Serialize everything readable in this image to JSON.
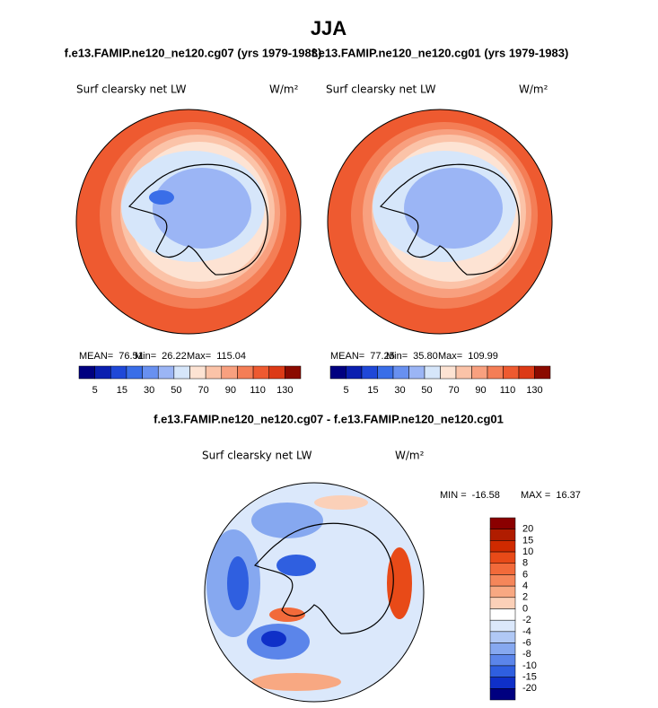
{
  "title": "JJA",
  "panels": [
    {
      "title": "f.e13.FAMIP.ne120_ne120.cg07 (yrs 1979-1983)",
      "variable": "Surf clearsky net LW",
      "units": "W/m²",
      "stats": [
        {
          "label": "MEAN=",
          "value": "76.51"
        },
        {
          "label": "Min=",
          "value": "26.22"
        },
        {
          "label": "Max=",
          "value": "115.04"
        }
      ],
      "colorbar": {
        "labels": [
          "5",
          "15",
          "30",
          "50",
          "70",
          "90",
          "110",
          "130"
        ],
        "colors": [
          "#000080",
          "#0a1fb0",
          "#1f48d8",
          "#3a6ee8",
          "#6890f0",
          "#9bb5f5",
          "#d6e6fa",
          "#fde3d3",
          "#fbc3a8",
          "#f8a07f",
          "#f47e56",
          "#ee5a30",
          "#dc3a16",
          "#8b0a00"
        ]
      }
    },
    {
      "title": "f.e13.FAMIP.ne120_ne120.cg01 (yrs 1979-1983)",
      "variable": "Surf clearsky net LW",
      "units": "W/m²",
      "stats": [
        {
          "label": "MEAN=",
          "value": "77.25"
        },
        {
          "label": "Min=",
          "value": "35.80"
        },
        {
          "label": "Max=",
          "value": "109.99"
        }
      ],
      "colorbar": {
        "labels": [
          "5",
          "15",
          "30",
          "50",
          "70",
          "90",
          "110",
          "130"
        ],
        "colors": [
          "#000080",
          "#0a1fb0",
          "#1f48d8",
          "#3a6ee8",
          "#6890f0",
          "#9bb5f5",
          "#d6e6fa",
          "#fde3d3",
          "#fbc3a8",
          "#f8a07f",
          "#f47e56",
          "#ee5a30",
          "#dc3a16",
          "#8b0a00"
        ]
      }
    },
    {
      "title": "f.e13.FAMIP.ne120_ne120.cg07 - f.e13.FAMIP.ne120_ne120.cg01",
      "variable": "Surf clearsky net LW",
      "units": "W/m²",
      "stats": [
        {
          "label": "MIN =",
          "value": "-16.58"
        },
        {
          "label": "MAX =",
          "value": "16.37"
        }
      ],
      "colorbar": {
        "labels": [
          "20",
          "15",
          "10",
          "8",
          "6",
          "4",
          "2",
          "0",
          "-2",
          "-4",
          "-6",
          "-8",
          "-10",
          "-15",
          "-20"
        ],
        "colors": [
          "#8b0000",
          "#b01c00",
          "#d02a00",
          "#e84a18",
          "#f26a3a",
          "#f5865a",
          "#f8a882",
          "#fbd0b8",
          "#ffffff",
          "#dbe8fb",
          "#b0c8f5",
          "#86a8f0",
          "#5b85ea",
          "#2f5fe0",
          "#0f30c8",
          "#000080"
        ]
      }
    }
  ]
}
